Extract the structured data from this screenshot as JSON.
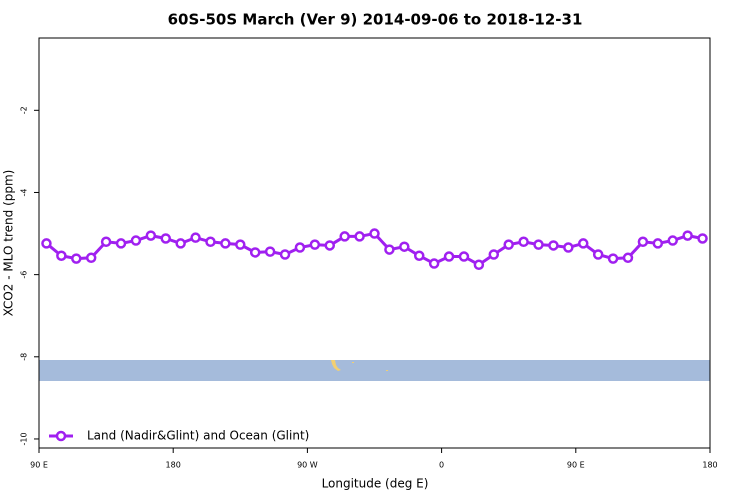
{
  "chart_data": {
    "type": "line",
    "title": "60S-50S March (Ver 9)   2014-09-06 to 2018-12-31",
    "x_label": "Longitude (deg E)",
    "y_label": "XCO2 - MLO trend (ppm)",
    "x": [
      95,
      105,
      115,
      125,
      135,
      145,
      155,
      165,
      175,
      185,
      195,
      205,
      215,
      225,
      235,
      245,
      255,
      265,
      275,
      285,
      295,
      305,
      315,
      325,
      335,
      345,
      355,
      365,
      375,
      385,
      395,
      405,
      415,
      425,
      435,
      445,
      455,
      465,
      475,
      485,
      495,
      505,
      515,
      525,
      535
    ],
    "series": [
      {
        "name": "Land (Nadir&Glint) and Ocean (Glint)",
        "color": "#a020f0",
        "values": [
          -5.24,
          -5.54,
          -5.61,
          -5.59,
          -5.2,
          -5.24,
          -5.17,
          -5.05,
          -5.12,
          -5.24,
          -5.1,
          -5.2,
          -5.24,
          -5.27,
          -5.46,
          -5.44,
          -5.51,
          -5.34,
          -5.27,
          -5.29,
          -5.07,
          -5.07,
          -5.0,
          -5.39,
          -5.32,
          -5.54,
          -5.73,
          -5.56,
          -5.56,
          -5.76,
          -5.51,
          -5.27,
          -5.2,
          -5.27,
          -5.29,
          -5.34,
          -5.24,
          -5.51,
          -5.61,
          -5.59,
          -5.2,
          -5.24,
          -5.17,
          -5.05,
          -5.12
        ]
      }
    ],
    "xlim": [
      90,
      540
    ],
    "xticks": [
      {
        "value": 90,
        "label": "90 E"
      },
      180,
      {
        "value": 270,
        "label": "90 W"
      },
      {
        "value": 360,
        "label": "0"
      },
      {
        "value": 450,
        "label": "90 E"
      },
      {
        "value": 540,
        "label": "180"
      }
    ],
    "ylim": [
      -10.22,
      -0.24
    ],
    "yticks": [
      -10,
      -8,
      -6,
      -4,
      -2
    ],
    "legend": "bottomleft"
  }
}
